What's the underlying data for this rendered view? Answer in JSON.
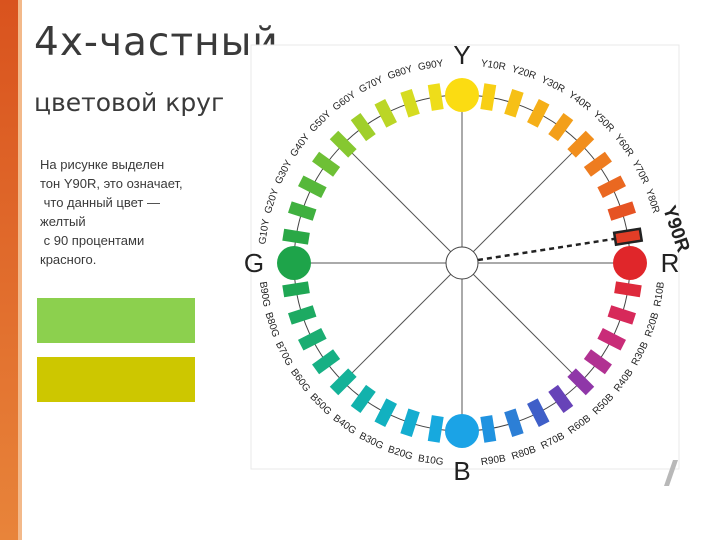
{
  "title": {
    "line1": "4х-частный",
    "line2": "цветовой круг"
  },
  "description": {
    "lines": [
      "На рисунке выделен",
      "тон Y90R, это означает,",
      " что данный цвет —",
      "желтый",
      " с 90 процентами",
      "красного."
    ]
  },
  "swatches": [
    {
      "color": "#8cd04e"
    },
    {
      "color": "#cdc700"
    }
  ],
  "wheel": {
    "primaries": [
      {
        "label": "Y",
        "color": "#fbdc12"
      },
      {
        "label": "R",
        "color": "#e0262a"
      },
      {
        "label": "B",
        "color": "#1ba3e6"
      },
      {
        "label": "G",
        "color": "#1ea44a"
      }
    ],
    "segments": [
      {
        "label": "Y10R",
        "color": "#f8cf14"
      },
      {
        "label": "Y20R",
        "color": "#f6c016"
      },
      {
        "label": "Y30R",
        "color": "#f5af18"
      },
      {
        "label": "Y40R",
        "color": "#f39f1a"
      },
      {
        "label": "Y50R",
        "color": "#f18e1c"
      },
      {
        "label": "Y60R",
        "color": "#ee7c1f"
      },
      {
        "label": "Y70R",
        "color": "#ea6821"
      },
      {
        "label": "Y80R",
        "color": "#e65323"
      },
      {
        "label": "Y90R",
        "color": "#e23d26",
        "highlight": true
      },
      {
        "label": "R10B",
        "color": "#de2a3c"
      },
      {
        "label": "R20B",
        "color": "#d7295a"
      },
      {
        "label": "R30B",
        "color": "#c92c78"
      },
      {
        "label": "R40B",
        "color": "#b13192"
      },
      {
        "label": "R50B",
        "color": "#8f37a8"
      },
      {
        "label": "R60B",
        "color": "#6743b8"
      },
      {
        "label": "R70B",
        "color": "#3f5fc8"
      },
      {
        "label": "R80B",
        "color": "#2c7fd6"
      },
      {
        "label": "R90B",
        "color": "#2093e0"
      },
      {
        "label": "B10G",
        "color": "#17a9de"
      },
      {
        "label": "B20G",
        "color": "#14add0"
      },
      {
        "label": "B30G",
        "color": "#12b1c0"
      },
      {
        "label": "B40G",
        "color": "#12b2ac"
      },
      {
        "label": "B50G",
        "color": "#14b298"
      },
      {
        "label": "B60G",
        "color": "#17b084"
      },
      {
        "label": "B70G",
        "color": "#1aad72"
      },
      {
        "label": "B80G",
        "color": "#1daa62"
      },
      {
        "label": "B90G",
        "color": "#1fa754"
      },
      {
        "label": "G10Y",
        "color": "#2aa846"
      },
      {
        "label": "G20Y",
        "color": "#3fb03f"
      },
      {
        "label": "G30Y",
        "color": "#56b83a"
      },
      {
        "label": "G40Y",
        "color": "#6ec035"
      },
      {
        "label": "G50Y",
        "color": "#86c830"
      },
      {
        "label": "G60Y",
        "color": "#a0cf2b"
      },
      {
        "label": "G70Y",
        "color": "#bbd626"
      },
      {
        "label": "G80Y",
        "color": "#d6dc20"
      },
      {
        "label": "G90Y",
        "color": "#eedd1a"
      }
    ]
  }
}
